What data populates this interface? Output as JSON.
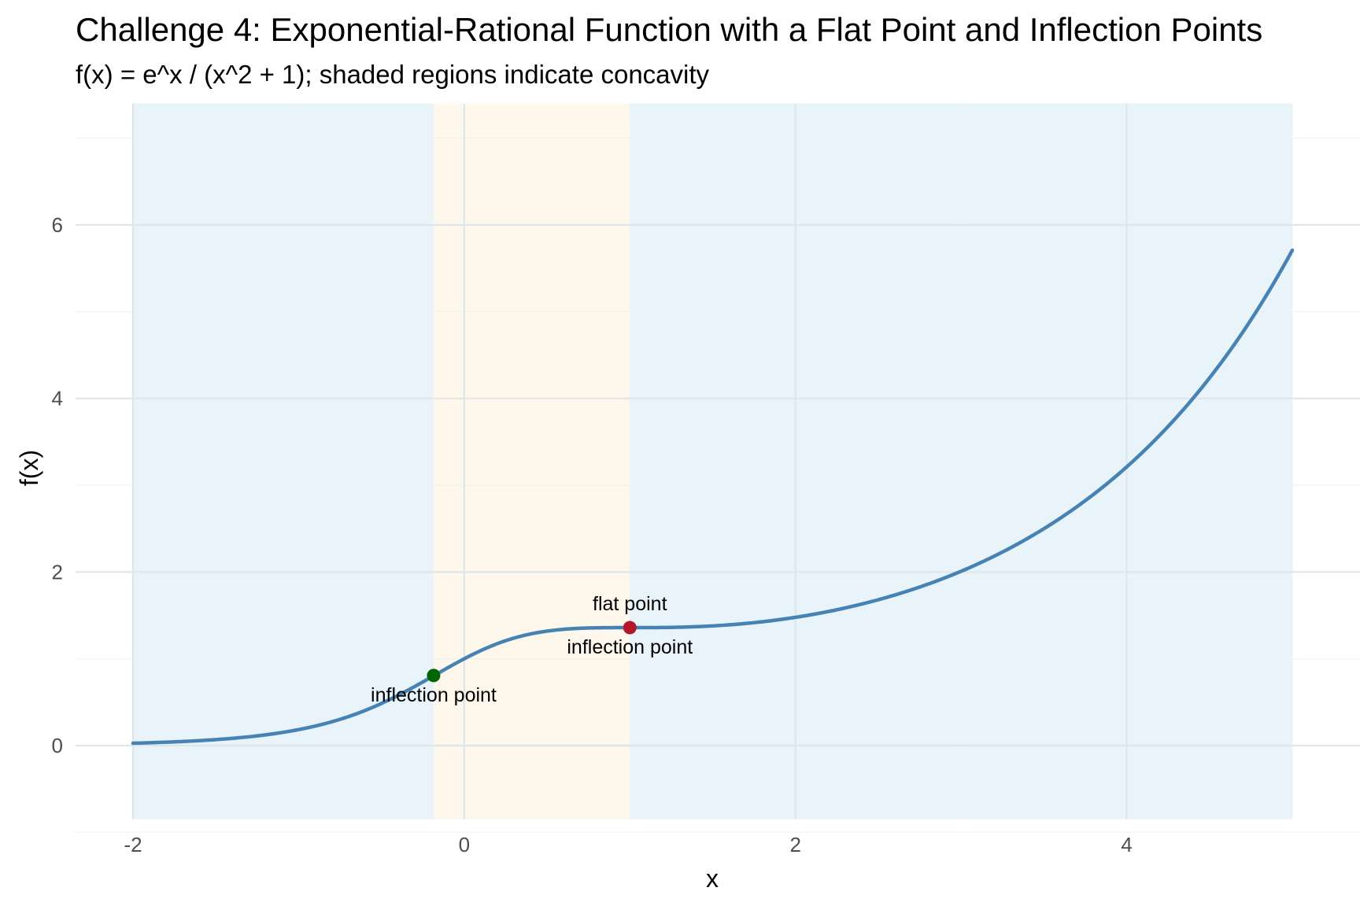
{
  "chart_data": {
    "type": "line",
    "title": "Challenge 4: Exponential-Rational Function with a Flat Point and Inflection Points",
    "subtitle": "f(x) = e^x / (x^2 + 1); shaded regions indicate concavity",
    "xlabel": "x",
    "ylabel": "f(x)",
    "xlim": [
      -2,
      5
    ],
    "ylim": [
      -0.85,
      7.4
    ],
    "x_ticks": [
      -2,
      0,
      2,
      4
    ],
    "x_tick_labels": [
      "-2",
      "0",
      "2",
      "4"
    ],
    "y_ticks": [
      0,
      2,
      4,
      6
    ],
    "y_tick_labels": [
      "0",
      "2",
      "4",
      "6"
    ],
    "grid": true,
    "colors": {
      "curve": "#4682b4",
      "concave_up_region": "#e8f4fa",
      "concave_down_region": "#fdf7ec",
      "flat_point": "#b2182b",
      "inflection_point_left": "#006400",
      "grid_major": "#dfe6ea",
      "grid_minor": "#eef2f4"
    },
    "concavity_regions": [
      {
        "x_start": -2,
        "x_end": -0.1848,
        "concavity": "up"
      },
      {
        "x_start": -0.1848,
        "x_end": 1,
        "concavity": "down"
      },
      {
        "x_start": 1,
        "x_end": 5,
        "concavity": "up"
      }
    ],
    "points": [
      {
        "x": -0.1848,
        "y": 0.808,
        "label_below": "inflection point",
        "color": "#006400"
      },
      {
        "x": 1,
        "y": 1.359,
        "label_above": "flat point",
        "label_below": "inflection point",
        "color": "#b2182b"
      }
    ],
    "function": "e^x / (x^2 + 1)"
  }
}
